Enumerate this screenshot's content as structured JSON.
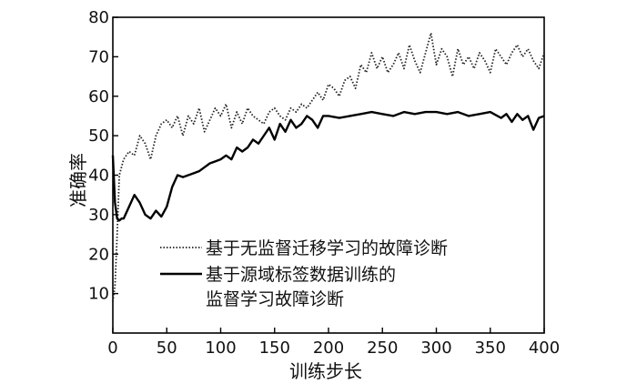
{
  "chart_data": {
    "type": "line",
    "xlabel": "训练步长",
    "ylabel": "准确率",
    "xlim": [
      0,
      400
    ],
    "ylim": [
      0,
      80
    ],
    "x_ticks": [
      0,
      50,
      100,
      150,
      200,
      250,
      300,
      350,
      400
    ],
    "y_ticks": [
      10,
      20,
      30,
      40,
      50,
      60,
      70,
      80
    ],
    "grid": false,
    "legend_position": "lower-center",
    "series": [
      {
        "name": "基于无监督迁移学习的故障诊断",
        "style": "dotted",
        "color": "#222222",
        "x": [
          0,
          2,
          4,
          6,
          8,
          10,
          15,
          20,
          25,
          30,
          35,
          40,
          45,
          50,
          55,
          60,
          65,
          70,
          75,
          80,
          85,
          90,
          95,
          100,
          105,
          110,
          115,
          120,
          125,
          130,
          135,
          140,
          145,
          150,
          155,
          160,
          165,
          170,
          175,
          180,
          185,
          190,
          195,
          200,
          205,
          210,
          215,
          220,
          225,
          230,
          235,
          240,
          245,
          250,
          255,
          260,
          265,
          270,
          275,
          280,
          285,
          290,
          295,
          300,
          305,
          310,
          315,
          320,
          325,
          330,
          335,
          340,
          345,
          350,
          355,
          360,
          365,
          370,
          375,
          380,
          385,
          390,
          395,
          400
        ],
        "y": [
          8,
          12,
          25,
          40,
          42,
          44,
          46,
          45,
          50,
          48,
          44,
          50,
          53,
          54,
          52,
          55,
          50,
          55,
          53,
          57,
          51,
          54,
          57,
          55,
          58,
          52,
          56,
          53,
          57,
          55,
          54,
          53,
          56,
          57,
          55,
          54,
          57,
          56,
          58,
          57,
          59,
          61,
          59,
          63,
          62,
          60,
          64,
          65,
          62,
          68,
          66,
          71,
          67,
          70,
          66,
          68,
          71,
          67,
          73,
          69,
          66,
          71,
          76,
          68,
          72,
          70,
          65,
          72,
          68,
          70,
          67,
          71,
          69,
          66,
          72,
          70,
          68,
          71,
          73,
          70,
          72,
          69,
          67,
          71
        ]
      },
      {
        "name": "基于源域标签数据训练的\n监督学习故障诊断",
        "style": "solid",
        "color": "#000000",
        "x": [
          0,
          2,
          4,
          6,
          8,
          10,
          15,
          20,
          25,
          30,
          35,
          40,
          45,
          50,
          55,
          60,
          65,
          70,
          75,
          80,
          85,
          90,
          95,
          100,
          105,
          110,
          115,
          120,
          125,
          130,
          135,
          140,
          145,
          150,
          155,
          160,
          165,
          170,
          175,
          180,
          185,
          190,
          195,
          200,
          210,
          220,
          230,
          240,
          250,
          260,
          270,
          280,
          290,
          300,
          310,
          320,
          330,
          340,
          350,
          360,
          365,
          370,
          375,
          380,
          385,
          390,
          395,
          400
        ],
        "y": [
          45,
          33,
          29,
          28.5,
          29,
          29,
          32,
          35,
          33,
          30,
          29,
          31,
          29.5,
          32,
          37,
          40,
          39.5,
          40,
          40.5,
          41,
          42,
          43,
          43.5,
          44,
          45,
          44,
          47,
          46,
          47,
          49,
          48,
          50,
          52,
          49,
          53,
          51,
          54,
          52,
          53,
          55,
          54,
          52,
          55,
          55,
          54.5,
          55,
          55.5,
          56,
          55.5,
          55,
          56,
          55.5,
          56,
          56,
          55.5,
          56,
          55,
          55.5,
          56,
          54.5,
          55.5,
          53.5,
          55.5,
          54,
          55,
          51.5,
          54.5,
          55
        ]
      }
    ]
  }
}
